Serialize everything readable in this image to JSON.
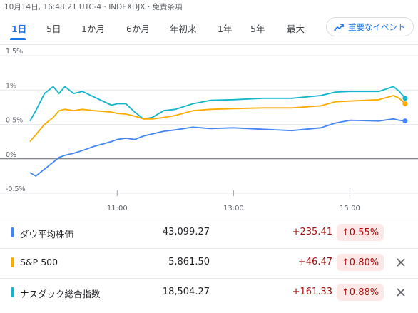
{
  "header": {
    "timestamp_line": "10月14日, 16:48:21 UTC-4 · INDEXDJX · 免責条項"
  },
  "tabs": [
    {
      "label": "1日",
      "active": true
    },
    {
      "label": "5日"
    },
    {
      "label": "1か月"
    },
    {
      "label": "6か月"
    },
    {
      "label": "年初来"
    },
    {
      "label": "1年"
    },
    {
      "label": "5年"
    },
    {
      "label": "最大"
    }
  ],
  "events_button": {
    "label": "重要なイベント",
    "icon": "trending-icon"
  },
  "chart_data": {
    "type": "line",
    "y_ticks": [
      "1.5%",
      "1%",
      "0.5%",
      "0%",
      "-0.5%"
    ],
    "x_ticks": [
      "11:00",
      "13:00",
      "15:00"
    ],
    "ylim": [
      -0.5,
      1.5
    ],
    "grid": true,
    "series": [
      {
        "name": "ナスダック総合指数",
        "color": "#12b5cb",
        "points": [
          [
            9.5,
            0.55
          ],
          [
            9.6,
            0.7
          ],
          [
            9.75,
            0.95
          ],
          [
            9.9,
            1.05
          ],
          [
            10.0,
            0.95
          ],
          [
            10.1,
            1.05
          ],
          [
            10.25,
            0.95
          ],
          [
            10.4,
            0.98
          ],
          [
            10.6,
            0.9
          ],
          [
            10.9,
            0.78
          ],
          [
            11.0,
            0.8
          ],
          [
            11.15,
            0.8
          ],
          [
            11.3,
            0.68
          ],
          [
            11.45,
            0.58
          ],
          [
            11.6,
            0.6
          ],
          [
            11.8,
            0.7
          ],
          [
            12.0,
            0.72
          ],
          [
            12.3,
            0.8
          ],
          [
            12.6,
            0.85
          ],
          [
            13.0,
            0.86
          ],
          [
            13.5,
            0.88
          ],
          [
            14.0,
            0.88
          ],
          [
            14.5,
            0.92
          ],
          [
            14.75,
            0.97
          ],
          [
            15.0,
            0.98
          ],
          [
            15.5,
            0.98
          ],
          [
            15.75,
            1.05
          ],
          [
            15.85,
            0.98
          ],
          [
            15.95,
            0.88
          ]
        ]
      },
      {
        "name": "S&P 500",
        "color": "#f9ab00",
        "points": [
          [
            9.5,
            0.25
          ],
          [
            9.6,
            0.35
          ],
          [
            9.75,
            0.5
          ],
          [
            9.9,
            0.6
          ],
          [
            10.0,
            0.7
          ],
          [
            10.1,
            0.72
          ],
          [
            10.25,
            0.7
          ],
          [
            10.4,
            0.72
          ],
          [
            10.6,
            0.7
          ],
          [
            10.9,
            0.68
          ],
          [
            11.0,
            0.66
          ],
          [
            11.15,
            0.65
          ],
          [
            11.3,
            0.62
          ],
          [
            11.45,
            0.58
          ],
          [
            11.6,
            0.58
          ],
          [
            11.8,
            0.6
          ],
          [
            12.0,
            0.63
          ],
          [
            12.3,
            0.7
          ],
          [
            12.6,
            0.72
          ],
          [
            13.0,
            0.73
          ],
          [
            13.5,
            0.74
          ],
          [
            14.0,
            0.74
          ],
          [
            14.5,
            0.77
          ],
          [
            14.75,
            0.83
          ],
          [
            15.0,
            0.84
          ],
          [
            15.5,
            0.86
          ],
          [
            15.75,
            0.92
          ],
          [
            15.85,
            0.88
          ],
          [
            15.95,
            0.8
          ]
        ]
      },
      {
        "name": "ダウ平均株価",
        "color": "#4285f4",
        "points": [
          [
            9.5,
            -0.2
          ],
          [
            9.6,
            -0.25
          ],
          [
            9.75,
            -0.15
          ],
          [
            9.9,
            -0.05
          ],
          [
            10.0,
            0.02
          ],
          [
            10.1,
            0.05
          ],
          [
            10.25,
            0.08
          ],
          [
            10.4,
            0.12
          ],
          [
            10.6,
            0.18
          ],
          [
            10.9,
            0.25
          ],
          [
            11.0,
            0.28
          ],
          [
            11.15,
            0.3
          ],
          [
            11.3,
            0.28
          ],
          [
            11.45,
            0.33
          ],
          [
            11.6,
            0.36
          ],
          [
            11.8,
            0.4
          ],
          [
            12.0,
            0.42
          ],
          [
            12.3,
            0.46
          ],
          [
            12.6,
            0.44
          ],
          [
            13.0,
            0.45
          ],
          [
            13.5,
            0.43
          ],
          [
            14.0,
            0.41
          ],
          [
            14.5,
            0.45
          ],
          [
            14.75,
            0.52
          ],
          [
            15.0,
            0.56
          ],
          [
            15.5,
            0.55
          ],
          [
            15.75,
            0.58
          ],
          [
            15.85,
            0.56
          ],
          [
            15.95,
            0.55
          ]
        ]
      }
    ]
  },
  "indices": [
    {
      "name": "ダウ平均株価",
      "color": "#4285f4",
      "value": "43,099.27",
      "change": "+235.41",
      "percent": "0.55%",
      "closable": false
    },
    {
      "name": "S&P 500",
      "color": "#f9ab00",
      "value": "5,861.50",
      "change": "+46.47",
      "percent": "0.80%",
      "closable": true
    },
    {
      "name": "ナスダック総合指数",
      "color": "#12b5cb",
      "value": "18,504.27",
      "change": "+161.33",
      "percent": "0.88%",
      "closable": true
    }
  ]
}
